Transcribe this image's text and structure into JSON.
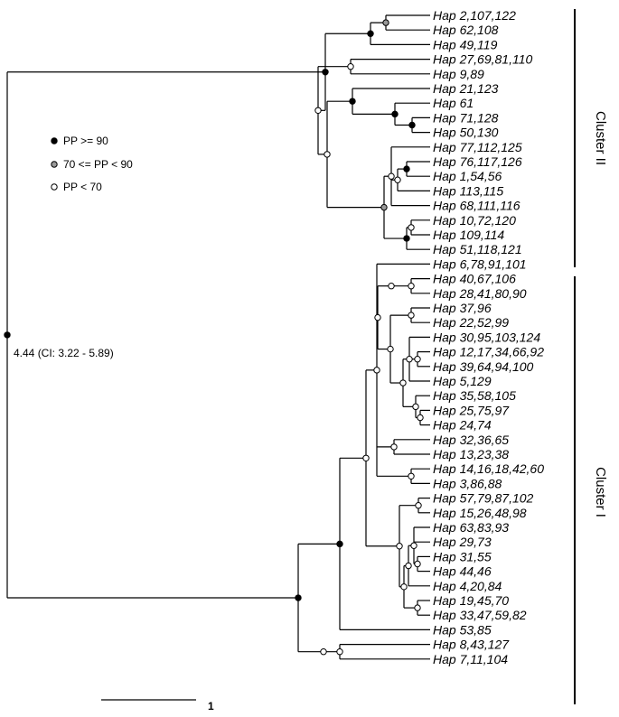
{
  "legend": [
    {
      "label": "PP >= 90",
      "fill": "#000000"
    },
    {
      "label": "70 <= PP < 90",
      "fill": "#999999"
    },
    {
      "label": "PP < 70",
      "fill": "#ffffff"
    }
  ],
  "root_label": "4.44 (CI: 3.22 - 5.89)",
  "scale_label": "1",
  "clusters": [
    {
      "label": "Cluster II"
    },
    {
      "label": "Cluster I"
    }
  ],
  "tips": [
    "Hap 2,107,122",
    "Hap 62,108",
    "Hap 49,119",
    "Hap 27,69,81,110",
    "Hap 9,89",
    "Hap 21,123",
    "Hap 61",
    "Hap 71,128",
    "Hap 50,130",
    "Hap 77,112,125",
    "Hap 76,117,126",
    "Hap 1,54,56",
    "Hap 113,115",
    "Hap 68,111,116",
    "Hap 10,72,120",
    "Hap 109,114",
    "Hap 51,118,121",
    "Hap 6,78,91,101",
    "Hap 40,67,106",
    "Hap 28,41,80,90",
    "Hap 37,96",
    "Hap 22,52,99",
    "Hap 30,95,103,124",
    "Hap 12,17,34,66,92",
    "Hap 39,64,94,100",
    "Hap 5,129",
    "Hap 35,58,105",
    "Hap 25,75,97",
    "Hap 24,74",
    "Hap 32,36,65",
    "Hap 13,23,38",
    "Hap 14,16,18,42,60",
    "Hap 3,86,88",
    "Hap 57,79,87,102",
    "Hap 15,26,48,98",
    "Hap 63,83,93",
    "Hap 29,73",
    "Hap 31,55",
    "Hap 44,46",
    "Hap 4,20,84",
    "Hap 19,45,70",
    "Hap 33,47,59,82",
    "Hap 53,85",
    "Hap 8,43,127",
    "Hap 7,11,104"
  ]
}
